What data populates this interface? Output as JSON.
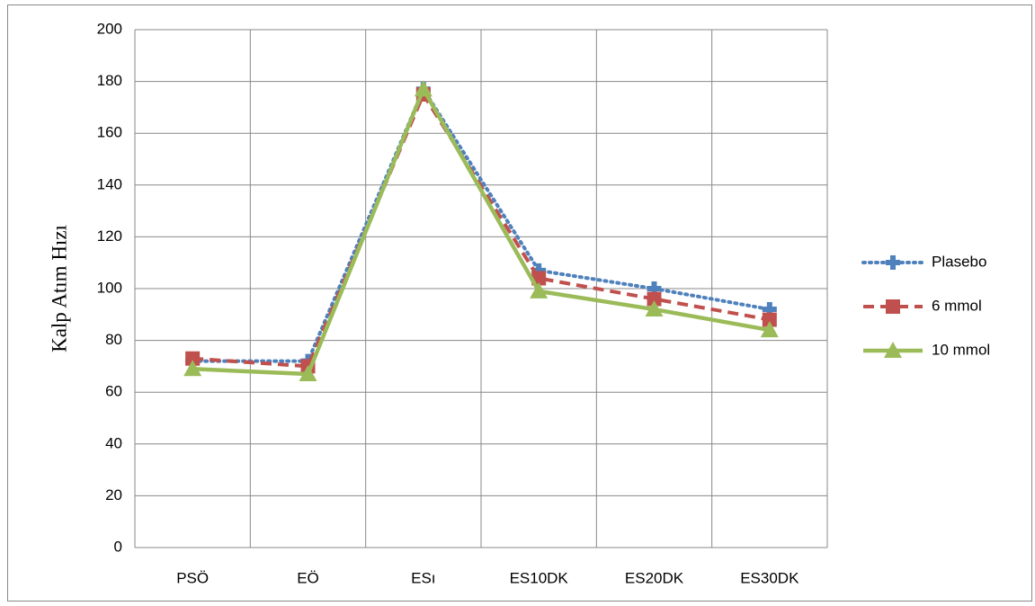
{
  "chart_data": {
    "type": "line",
    "y_label": "Kalp Atım Hızı",
    "categories": [
      "PSÖ",
      "EÖ",
      "ESı",
      "ES10DK",
      "ES20DK",
      "ES30DK"
    ],
    "series": [
      {
        "name": "Plasebo",
        "color": "#4f81bd",
        "dash": "dotted",
        "marker": "plus",
        "values": [
          72,
          72,
          177,
          107,
          100,
          92
        ]
      },
      {
        "name": "6 mmol",
        "color": "#c0504d",
        "dash": "dashed",
        "marker": "square",
        "values": [
          73,
          70,
          175,
          104,
          96,
          88
        ]
      },
      {
        "name": "10 mmol",
        "color": "#9bbb59",
        "dash": "solid",
        "marker": "triangle",
        "values": [
          69,
          67,
          177,
          99,
          92,
          84
        ]
      }
    ],
    "ylim": [
      0,
      200
    ],
    "yticks": [
      0,
      20,
      40,
      60,
      80,
      100,
      120,
      140,
      160,
      180,
      200
    ],
    "grid": true,
    "legend": "right"
  }
}
